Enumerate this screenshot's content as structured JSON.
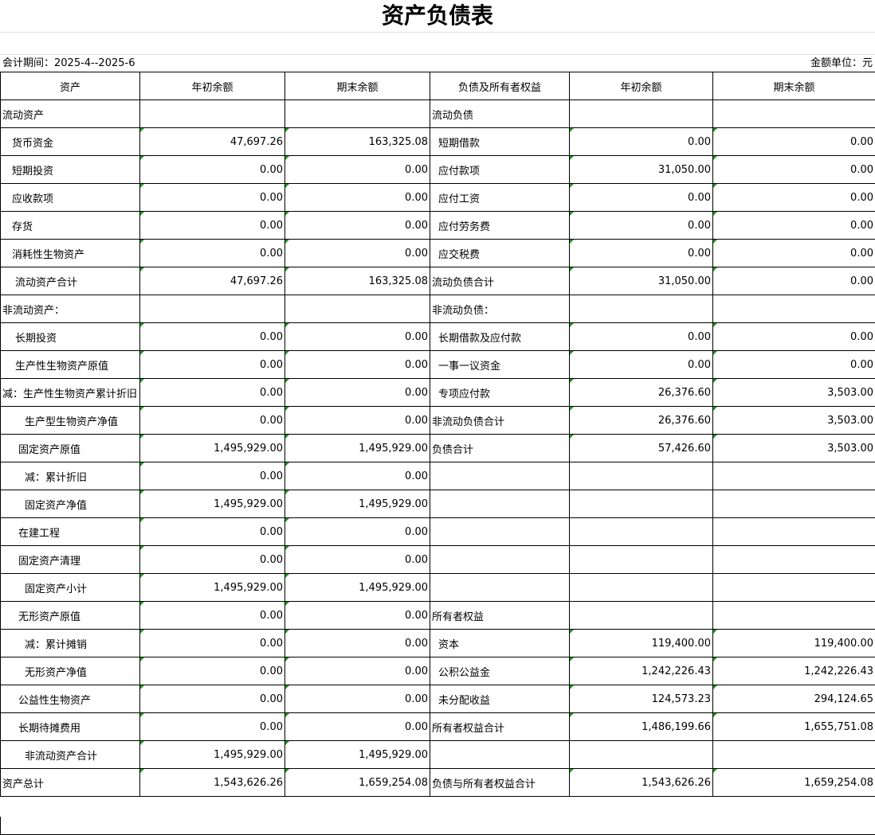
{
  "title": "资产负债表",
  "period": "会计期间：2025-4--2025-6",
  "unit": "金额单位：元",
  "headers": [
    "资产",
    "年初余额",
    "期末余额",
    "负债及所有者权益",
    "年初余额",
    "期末余额"
  ],
  "rows": [
    [
      "流动资产",
      null,
      null,
      "流动负债",
      null,
      null
    ],
    [
      "货币资金",
      "47,697.26",
      "163,325.08",
      "短期借款",
      "0.00",
      "0.00"
    ],
    [
      "短期投资",
      "0.00",
      "0.00",
      "应付款项",
      "31,050.00",
      "0.00"
    ],
    [
      "应收款项",
      "0.00",
      "0.00",
      "应付工资",
      "0.00",
      "0.00"
    ],
    [
      "存货",
      "0.00",
      "0.00",
      "应付劳务费",
      "0.00",
      "0.00"
    ],
    [
      "消耗性生物资产",
      "0.00",
      "0.00",
      "应交税费",
      "0.00",
      "0.00"
    ],
    [
      "流动资产合计",
      "47,697.26",
      "163,325.08",
      "流动负债合计",
      "31,050.00",
      "0.00"
    ],
    [
      "非流动资产：",
      null,
      null,
      "非流动负债：",
      null,
      null
    ],
    [
      "长期投资",
      "0.00",
      "0.00",
      "长期借款及应付款",
      "0.00",
      "0.00"
    ],
    [
      "生产性生物资产原值",
      "0.00",
      "0.00",
      "一事一议资金",
      "0.00",
      "0.00"
    ],
    [
      "减：生产性生物资产累计折旧",
      "0.00",
      "0.00",
      "专项应付款",
      "26,376.60",
      "3,503.00"
    ],
    [
      "生产型生物资产净值",
      "0.00",
      "0.00",
      "非流动负债合计",
      "26,376.60",
      "3,503.00"
    ],
    [
      "固定资产原值",
      "1,495,929.00",
      "1,495,929.00",
      "负债合计",
      "57,426.60",
      "3,503.00"
    ],
    [
      "减：累计折旧",
      "0.00",
      "0.00",
      null,
      null,
      null
    ],
    [
      "固定资产净值",
      "1,495,929.00",
      "1,495,929.00",
      null,
      null,
      null
    ],
    [
      "在建工程",
      "0.00",
      "0.00",
      null,
      null,
      null
    ],
    [
      "固定资产清理",
      "0.00",
      "0.00",
      null,
      null,
      null
    ],
    [
      "固定资产小计",
      "1,495,929.00",
      "1,495,929.00",
      null,
      null,
      null
    ],
    [
      "无形资产原值",
      "0.00",
      "0.00",
      "所有者权益",
      null,
      null
    ],
    [
      "减：累计摊销",
      "0.00",
      "0.00",
      "资本",
      "119,400.00",
      "119,400.00"
    ],
    [
      "无形资产净值",
      "0.00",
      "0.00",
      "公积公益金",
      "1,242,226.43",
      "1,242,226.43"
    ],
    [
      "公益性生物资产",
      "0.00",
      "0.00",
      "未分配收益",
      "124,573.23",
      "294,124.65"
    ],
    [
      "长期待摊费用",
      "0.00",
      "0.00",
      "所有者权益合计",
      "1,486,199.66",
      "1,655,751.08"
    ],
    [
      "非流动资产合计",
      "1,495,929.00",
      "1,495,929.00",
      null,
      null,
      null
    ],
    [
      "资产总计",
      "1,543,626.26",
      "1,659,254.08",
      "负债与所有者权益合计",
      "1,543,626.26",
      "1,659,254.08"
    ]
  ]
}
